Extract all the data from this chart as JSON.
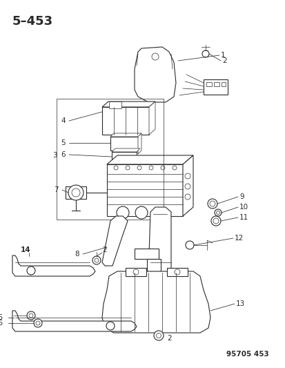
{
  "title": "5–453",
  "footer": "95705 453",
  "bg_color": "#ffffff",
  "line_color": "#2a2a2a",
  "title_fontsize": 13,
  "footer_fontsize": 7.5,
  "label_fontsize": 7.5,
  "bold_label_fontsize": 8.0,
  "fig_width": 4.14,
  "fig_height": 5.33,
  "dpi": 100
}
